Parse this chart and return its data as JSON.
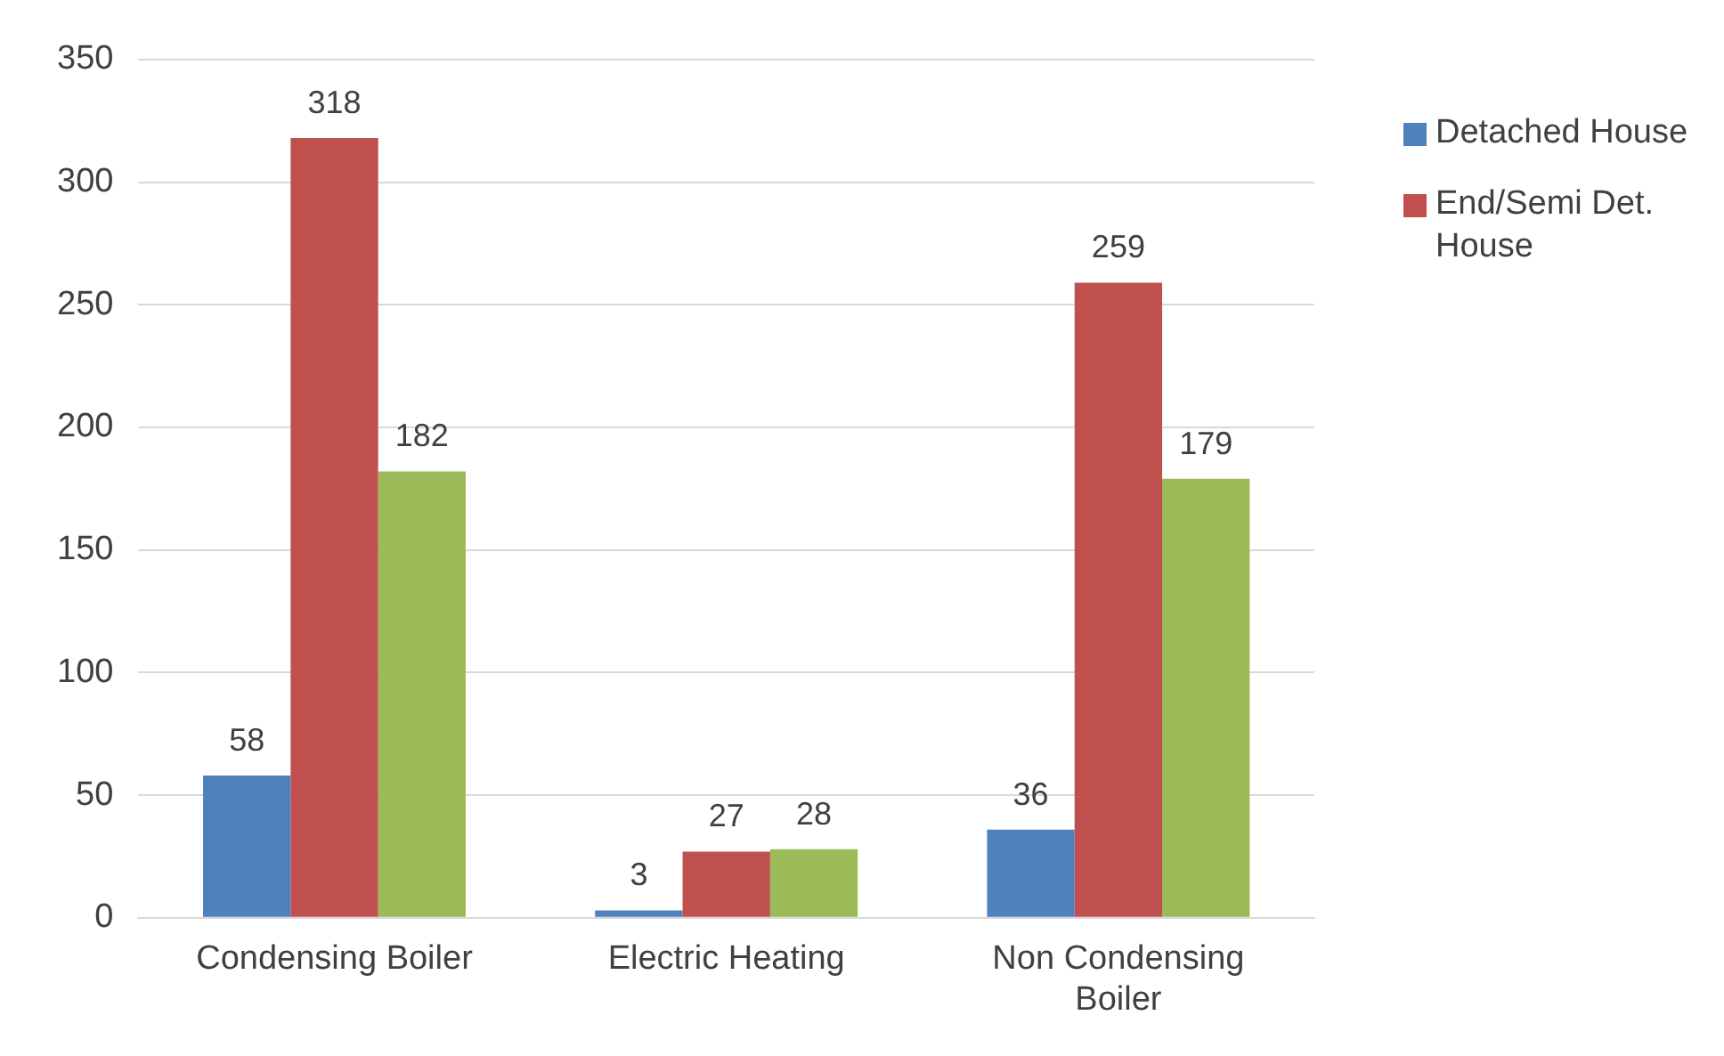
{
  "chart_data": {
    "type": "bar",
    "categories": [
      "Condensing Boiler",
      "Electric Heating",
      "Non Condensing Boiler"
    ],
    "series": [
      {
        "name": "Detached House",
        "color": "#4f81bd",
        "values": [
          58,
          3,
          36
        ]
      },
      {
        "name": "End/Semi Det. House",
        "color": "#c0504d",
        "values": [
          318,
          27,
          259
        ]
      },
      {
        "color": "#9bbb59",
        "values": [
          182,
          28,
          179
        ]
      }
    ],
    "ylim": [
      0,
      350
    ],
    "yticks": [
      0,
      50,
      100,
      150,
      200,
      250,
      300,
      350
    ],
    "grid": "y",
    "legend": "top right",
    "data_labels": true
  }
}
